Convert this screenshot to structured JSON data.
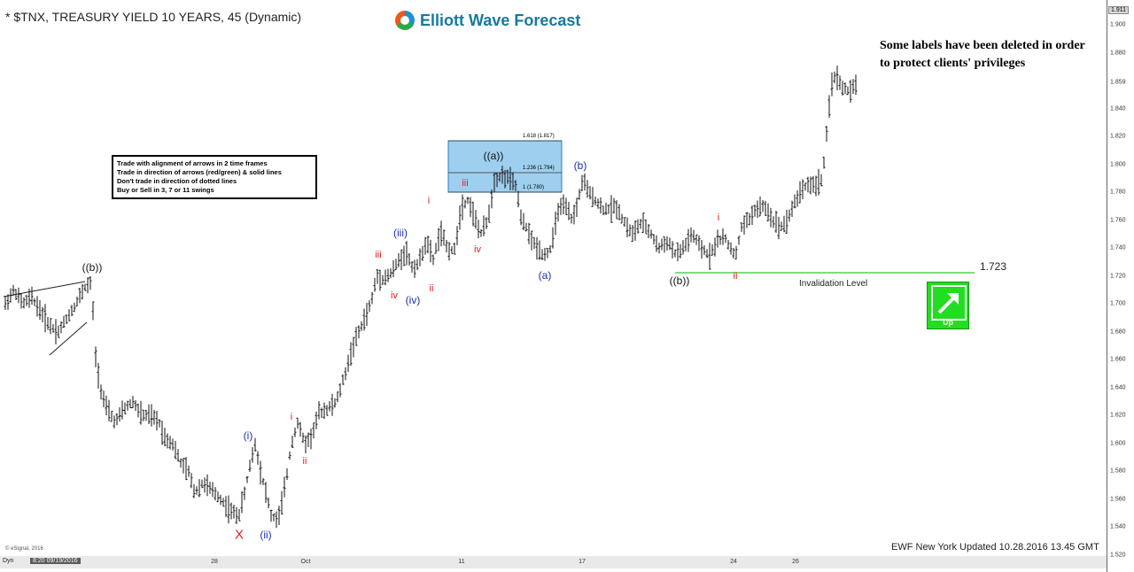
{
  "title": "* $TNX, TREASURY YIELD 10 YEARS, 45 (Dynamic)",
  "brand": "Elliott Wave Forecast",
  "disclaimer": "Some labels have been deleted in order to protect clients' privileges",
  "rules": [
    "Trade with alignment of arrows in 2 time frames",
    "Trade in direction of arrows (red/green) & solid lines",
    "Don't trade in direction of dotted lines",
    "Buy or Sell in 3, 7 or 11 swings"
  ],
  "footer": "EWF New York Updated 10.28.2016 13.45 GMT",
  "esignal": "© eSignal, 2016",
  "invalidation": {
    "value": "1.723",
    "label": "Invalidation Level"
  },
  "trend_badge": {
    "label": "Up",
    "icon": "arrow-up-right-icon",
    "color": "#22dd22"
  },
  "fib_levels": [
    {
      "label": "1.618 (1.817)"
    },
    {
      "label": "1.236 (1.794)"
    },
    {
      "label": "1 (1.780)"
    }
  ],
  "dynamic_bar": {
    "label": "Dyn",
    "date": "8:20 09/19/2016"
  },
  "current_price_tag": "1.911",
  "wave_labels": [
    {
      "text": "((b))",
      "color": "black"
    },
    {
      "text": "X",
      "color": "bigx"
    },
    {
      "text": "(i)",
      "color": "blue"
    },
    {
      "text": "(ii)",
      "color": "blue"
    },
    {
      "text": "i",
      "color": "red"
    },
    {
      "text": "ii",
      "color": "red"
    },
    {
      "text": "iii",
      "color": "red"
    },
    {
      "text": "iv",
      "color": "red"
    },
    {
      "text": "(iii)",
      "color": "blue"
    },
    {
      "text": "(iv)",
      "color": "blue"
    },
    {
      "text": "i",
      "color": "red"
    },
    {
      "text": "ii",
      "color": "red"
    },
    {
      "text": "iii",
      "color": "red"
    },
    {
      "text": "iv",
      "color": "red"
    },
    {
      "text": "((a))",
      "color": "black"
    },
    {
      "text": "(a)",
      "color": "blue"
    },
    {
      "text": "(b)",
      "color": "blue"
    },
    {
      "text": "((b))",
      "color": "black"
    },
    {
      "text": "i",
      "color": "red"
    },
    {
      "text": "ii",
      "color": "red"
    }
  ],
  "chart_data": {
    "type": "ohlc",
    "symbol": "$TNX",
    "interval": "45 min",
    "ylim": [
      1.52,
      1.911
    ],
    "y_ticks": [
      "1.900",
      "1.880",
      "1.859",
      "1.840",
      "1.820",
      "1.800",
      "1.780",
      "1.760",
      "1.740",
      "1.720",
      "1.700",
      "1.680",
      "1.660",
      "1.640",
      "1.620",
      "1.600",
      "1.580",
      "1.560",
      "1.540",
      "1.520"
    ],
    "x_ticks": [
      "28",
      "Oct",
      "11",
      "17",
      "24",
      "26"
    ],
    "path": [
      [
        0,
        1.7
      ],
      [
        10,
        1.71
      ],
      [
        20,
        1.7
      ],
      [
        30,
        1.705
      ],
      [
        40,
        1.695
      ],
      [
        50,
        1.685
      ],
      [
        60,
        1.68
      ],
      [
        70,
        1.69
      ],
      [
        80,
        1.7
      ],
      [
        90,
        1.712
      ],
      [
        98,
        1.715
      ],
      [
        102,
        1.665
      ],
      [
        108,
        1.64
      ],
      [
        115,
        1.625
      ],
      [
        125,
        1.615
      ],
      [
        135,
        1.625
      ],
      [
        145,
        1.63
      ],
      [
        155,
        1.62
      ],
      [
        165,
        1.62
      ],
      [
        175,
        1.615
      ],
      [
        180,
        1.605
      ],
      [
        190,
        1.6
      ],
      [
        200,
        1.585
      ],
      [
        208,
        1.58
      ],
      [
        215,
        1.565
      ],
      [
        225,
        1.572
      ],
      [
        235,
        1.566
      ],
      [
        245,
        1.56
      ],
      [
        255,
        1.552
      ],
      [
        265,
        1.548
      ],
      [
        272,
        1.565
      ],
      [
        278,
        1.585
      ],
      [
        284,
        1.6
      ],
      [
        290,
        1.58
      ],
      [
        296,
        1.565
      ],
      [
        302,
        1.548
      ],
      [
        310,
        1.545
      ],
      [
        318,
        1.57
      ],
      [
        325,
        1.6
      ],
      [
        332,
        1.615
      ],
      [
        340,
        1.6
      ],
      [
        348,
        1.605
      ],
      [
        356,
        1.622
      ],
      [
        366,
        1.625
      ],
      [
        376,
        1.63
      ],
      [
        386,
        1.65
      ],
      [
        395,
        1.67
      ],
      [
        405,
        1.685
      ],
      [
        415,
        1.7
      ],
      [
        422,
        1.72
      ],
      [
        430,
        1.718
      ],
      [
        438,
        1.722
      ],
      [
        446,
        1.73
      ],
      [
        455,
        1.738
      ],
      [
        463,
        1.725
      ],
      [
        470,
        1.73
      ],
      [
        478,
        1.745
      ],
      [
        486,
        1.732
      ],
      [
        494,
        1.752
      ],
      [
        502,
        1.74
      ],
      [
        510,
        1.738
      ],
      [
        518,
        1.77
      ],
      [
        526,
        1.775
      ],
      [
        534,
        1.76
      ],
      [
        540,
        1.75
      ],
      [
        548,
        1.76
      ],
      [
        556,
        1.79
      ],
      [
        564,
        1.792
      ],
      [
        572,
        1.79
      ],
      [
        580,
        1.785
      ],
      [
        586,
        1.76
      ],
      [
        592,
        1.755
      ],
      [
        598,
        1.745
      ],
      [
        605,
        1.74
      ],
      [
        612,
        1.735
      ],
      [
        620,
        1.74
      ],
      [
        628,
        1.768
      ],
      [
        636,
        1.77
      ],
      [
        644,
        1.76
      ],
      [
        650,
        1.772
      ],
      [
        656,
        1.79
      ],
      [
        662,
        1.78
      ],
      [
        670,
        1.775
      ],
      [
        678,
        1.768
      ],
      [
        686,
        1.768
      ],
      [
        694,
        1.77
      ],
      [
        702,
        1.76
      ],
      [
        712,
        1.75
      ],
      [
        722,
        1.758
      ],
      [
        732,
        1.752
      ],
      [
        742,
        1.74
      ],
      [
        752,
        1.745
      ],
      [
        762,
        1.735
      ],
      [
        770,
        1.74
      ],
      [
        780,
        1.75
      ],
      [
        790,
        1.74
      ],
      [
        800,
        1.735
      ],
      [
        808,
        1.745
      ],
      [
        816,
        1.748
      ],
      [
        824,
        1.74
      ],
      [
        830,
        1.735
      ],
      [
        836,
        1.755
      ],
      [
        844,
        1.76
      ],
      [
        852,
        1.768
      ],
      [
        862,
        1.77
      ],
      [
        872,
        1.76
      ],
      [
        880,
        1.755
      ],
      [
        888,
        1.76
      ],
      [
        896,
        1.772
      ],
      [
        904,
        1.782
      ],
      [
        912,
        1.786
      ],
      [
        920,
        1.785
      ],
      [
        928,
        1.79
      ],
      [
        932,
        1.815
      ],
      [
        936,
        1.842
      ],
      [
        940,
        1.865
      ],
      [
        946,
        1.86
      ],
      [
        952,
        1.855
      ],
      [
        958,
        1.852
      ],
      [
        964,
        1.855
      ],
      [
        968,
        1.858
      ]
    ]
  }
}
